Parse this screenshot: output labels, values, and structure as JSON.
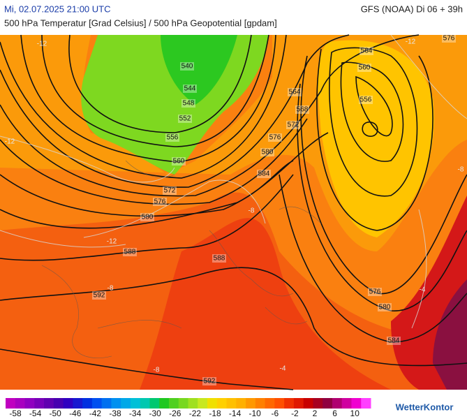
{
  "header": {
    "datetime": "Mi, 02.07.2025 21:00 UTC",
    "model": "GFS (NOAA) Di 06 + 39h",
    "subtitle": "500 hPa Temperatur [Grad Celsius] / 500 hPa Geopotential [gpdam]"
  },
  "map": {
    "contour_labels": [
      564,
      560,
      556,
      540,
      544,
      548,
      552,
      556,
      560,
      564,
      568,
      572,
      576,
      580,
      584,
      572,
      576,
      580,
      588,
      588,
      592,
      576,
      580,
      584,
      592,
      576
    ],
    "temperature_labels": [
      -12,
      -12,
      -8,
      -12,
      -8,
      -8,
      -4,
      -4,
      -8,
      -12
    ]
  },
  "colorbar": {
    "ticks": [
      -58,
      -54,
      -50,
      -46,
      -42,
      -38,
      -34,
      -30,
      -26,
      -22,
      -18,
      -14,
      -10,
      -6,
      -2,
      2,
      6,
      10
    ],
    "colors": [
      "#c000c0",
      "#a800c0",
      "#9000c0",
      "#7800b8",
      "#6000b0",
      "#4800b0",
      "#3000c0",
      "#1818d0",
      "#0030e0",
      "#0050f0",
      "#0070f0",
      "#0090f0",
      "#00a8e8",
      "#00c0d8",
      "#00c8b0",
      "#00c870",
      "#20c820",
      "#50d020",
      "#78d820",
      "#a0e020",
      "#c8e820",
      "#f0e000",
      "#ffd000",
      "#ffc000",
      "#ffb000",
      "#ff9800",
      "#ff8000",
      "#ff6800",
      "#ff5000",
      "#f03000",
      "#e01800",
      "#c80000",
      "#a80020",
      "#900040",
      "#b00070",
      "#d000a0",
      "#f000d0",
      "#ff40ff"
    ],
    "brand": "WetterKontor"
  }
}
